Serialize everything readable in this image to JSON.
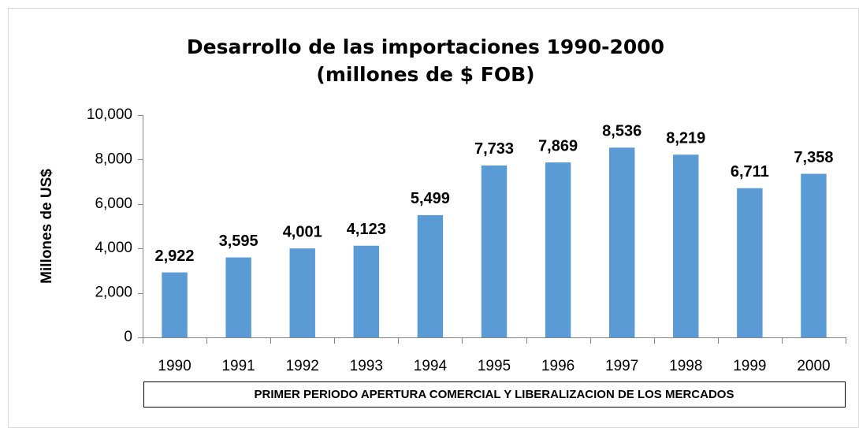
{
  "chart_data": {
    "type": "bar",
    "title": [
      "Desarrollo de las importaciones  1990-2000",
      "(millones de $ FOB)"
    ],
    "y_label": "Millones de US$",
    "annotation": "PRIMER PERIODO APERTURA COMERCIAL Y LIBERALIZACION DE LOS MERCADOS",
    "categories": [
      "1990",
      "1991",
      "1992",
      "1993",
      "1994",
      "1995",
      "1996",
      "1997",
      "1998",
      "1999",
      "2000"
    ],
    "values": [
      2922,
      3595,
      4001,
      4123,
      5499,
      7733,
      7869,
      8536,
      8219,
      6711,
      7358
    ],
    "value_labels": [
      "2,922",
      "3,595",
      "4,001",
      "4,123",
      "5,499",
      "7,733",
      "7,869",
      "8,536",
      "8,219",
      "6,711",
      "7,358"
    ],
    "color": "#5b9bd5",
    "ylim": [
      0,
      10000
    ],
    "yticks": [
      0,
      {
        "value": 2000,
        "label": "2,000"
      },
      {
        "value": 4000,
        "label": "4,000"
      },
      {
        "value": 6000,
        "label": "6,000"
      },
      {
        "value": 8000,
        "label": "8,000"
      },
      {
        "value": 10000,
        "label": "10,000"
      }
    ],
    "grid": false
  }
}
